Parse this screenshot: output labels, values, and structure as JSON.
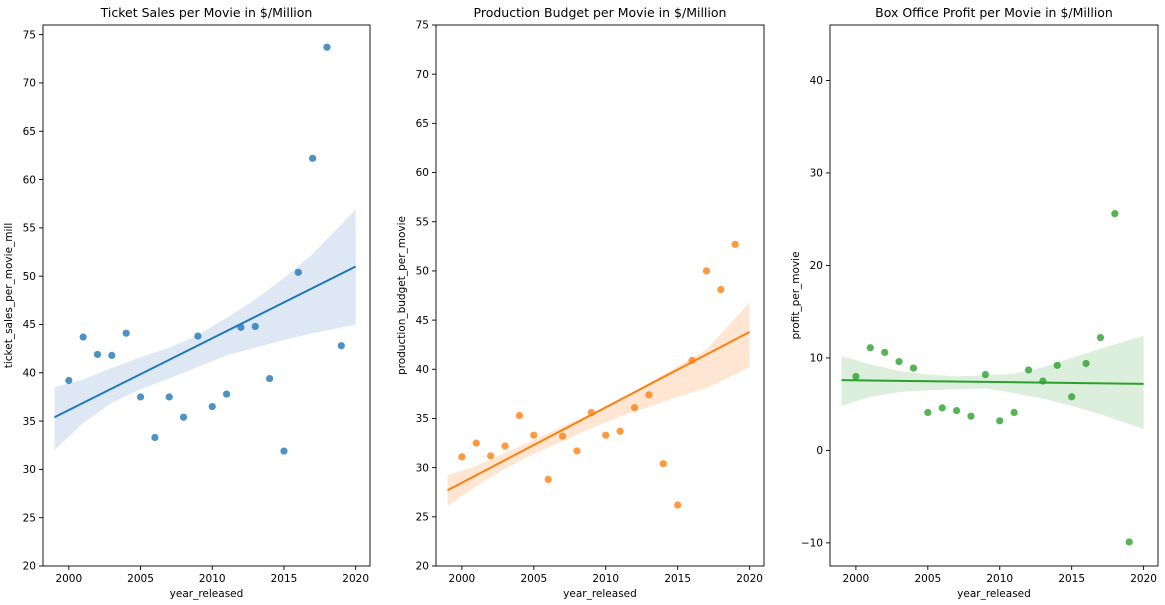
{
  "chart_data": [
    {
      "type": "scatter",
      "title": "Ticket Sales per Movie in $/Million",
      "xlabel": "year_released",
      "ylabel": "ticket_sales_per_movie_mill",
      "xlim": [
        1998.2,
        2021
      ],
      "ylim": [
        20,
        76
      ],
      "xticks": [
        2000,
        2005,
        2010,
        2015,
        2020
      ],
      "yticks": [
        20,
        25,
        30,
        35,
        40,
        45,
        50,
        55,
        60,
        65,
        70,
        75
      ],
      "color": "#1f77b4",
      "band_color": "#dde8f4",
      "points": {
        "x": [
          2000,
          2001,
          2002,
          2003,
          2004,
          2005,
          2006,
          2007,
          2008,
          2009,
          2010,
          2011,
          2012,
          2013,
          2014,
          2015,
          2016,
          2017,
          2018,
          2019
        ],
        "y": [
          39.2,
          43.7,
          41.9,
          41.8,
          44.1,
          37.5,
          33.3,
          37.5,
          35.4,
          43.8,
          36.5,
          37.8,
          44.7,
          44.8,
          39.4,
          31.9,
          50.4,
          62.2,
          73.7,
          42.8
        ]
      },
      "regression": {
        "x": [
          1999,
          2020
        ],
        "y": [
          35.4,
          51.0
        ]
      },
      "ci": {
        "x": [
          1999,
          2001,
          2003,
          2005,
          2007,
          2009,
          2011,
          2013,
          2015,
          2017,
          2020
        ],
        "lower": [
          32.0,
          34.8,
          36.9,
          38.3,
          39.4,
          40.6,
          41.8,
          42.6,
          43.4,
          44.1,
          45.0
        ],
        "upper": [
          38.5,
          39.3,
          40.5,
          41.6,
          42.6,
          43.9,
          45.7,
          47.6,
          49.8,
          52.3,
          56.9
        ]
      }
    },
    {
      "type": "scatter",
      "title": "Production Budget per Movie in $/Million",
      "xlabel": "year_released",
      "ylabel": "production_budget_per_movie",
      "xlim": [
        1998.2,
        2021
      ],
      "ylim": [
        20,
        75
      ],
      "xticks": [
        2000,
        2005,
        2010,
        2015,
        2020
      ],
      "yticks": [
        20,
        25,
        30,
        35,
        40,
        45,
        50,
        55,
        60,
        65,
        70,
        75
      ],
      "color": "#ff7f0e",
      "band_color": "#ffe6d2",
      "points": {
        "x": [
          2000,
          2001,
          2002,
          2003,
          2004,
          2005,
          2006,
          2007,
          2008,
          2009,
          2010,
          2011,
          2012,
          2013,
          2014,
          2015,
          2016,
          2017,
          2018,
          2019
        ],
        "y": [
          31.1,
          32.5,
          31.2,
          32.2,
          35.3,
          33.3,
          28.8,
          33.2,
          31.7,
          35.6,
          33.3,
          33.7,
          36.1,
          37.4,
          30.4,
          26.2,
          40.9,
          50.0,
          48.1,
          52.7
        ]
      },
      "regression": {
        "x": [
          1999,
          2020
        ],
        "y": [
          27.7,
          43.8
        ]
      },
      "ci": {
        "x": [
          1999,
          2001,
          2003,
          2005,
          2007,
          2009,
          2011,
          2013,
          2015,
          2017,
          2020
        ],
        "lower": [
          26.1,
          28.1,
          29.9,
          31.4,
          32.7,
          34.0,
          35.2,
          36.2,
          37.2,
          38.1,
          40.2
        ],
        "upper": [
          29.2,
          30.2,
          31.5,
          32.8,
          34.2,
          35.5,
          37.0,
          38.6,
          40.3,
          42.0,
          46.8
        ]
      }
    },
    {
      "type": "scatter",
      "title": "Box Office Profit per Movie in $/Million",
      "xlabel": "year_released",
      "ylabel": "profit_per_movie",
      "xlim": [
        1998.2,
        2021
      ],
      "ylim": [
        -12.5,
        46
      ],
      "xticks": [
        2000,
        2005,
        2010,
        2015,
        2020
      ],
      "yticks": [
        -10,
        0,
        10,
        20,
        30,
        40
      ],
      "color": "#2ca02c",
      "band_color": "#dcefdc",
      "points": {
        "x": [
          2000,
          2001,
          2002,
          2003,
          2004,
          2005,
          2006,
          2007,
          2008,
          2009,
          2010,
          2011,
          2012,
          2013,
          2014,
          2015,
          2016,
          2017,
          2018,
          2019
        ],
        "y": [
          8.0,
          11.1,
          10.6,
          9.6,
          8.9,
          4.1,
          4.6,
          4.3,
          3.7,
          8.2,
          3.2,
          4.1,
          8.7,
          7.5,
          9.2,
          5.8,
          9.4,
          12.2,
          25.6,
          -9.9
        ]
      },
      "regression": {
        "x": [
          1999,
          2020
        ],
        "y": [
          7.6,
          7.2
        ]
      },
      "ci": {
        "x": [
          1999,
          2001,
          2003,
          2005,
          2007,
          2009,
          2011,
          2013,
          2015,
          2017,
          2020
        ],
        "lower": [
          4.8,
          5.8,
          6.3,
          6.5,
          6.6,
          6.7,
          6.2,
          5.6,
          4.8,
          3.9,
          2.3
        ],
        "upper": [
          10.2,
          9.3,
          8.6,
          8.2,
          8.0,
          8.1,
          8.3,
          9.0,
          10.0,
          11.0,
          12.4
        ]
      }
    }
  ]
}
